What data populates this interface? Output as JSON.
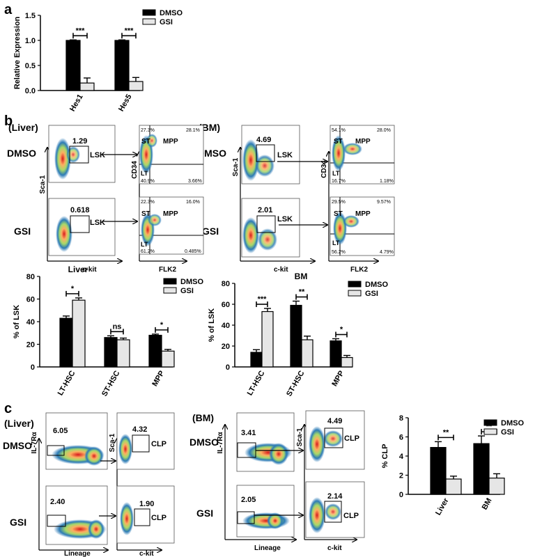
{
  "panel_letters": {
    "a": "a",
    "b": "b",
    "c": "c"
  },
  "legend": {
    "dmso": "DMSO",
    "gsi": "GSI"
  },
  "colors": {
    "dmso": "#000000",
    "gsi": "#e6e6e6"
  },
  "flow_b": {
    "tissue_liver": "(Liver)",
    "tissue_bm": "(BM)",
    "row_dmso": "DMSO",
    "row_gsi": "GSI",
    "y1": "Sca-1",
    "x1": "c-kit",
    "y2": "CD34",
    "x2": "FLK2",
    "gate": "LSK",
    "st": "ST",
    "mpp": "MPP",
    "lt": "LT",
    "liver_dmso": {
      "lsk": "1.29",
      "ul": "27.3%",
      "ur": "28.1%",
      "ll": "40.9%",
      "lr": "3.66%"
    },
    "liver_gsi": {
      "lsk": "0.618",
      "ul": "22.3%",
      "ur": "16.0%",
      "ll": "61.2%",
      "lr": "0.485%"
    },
    "bm_dmso": {
      "lsk": "4.69",
      "ul": "54.1%",
      "ur": "28.0%",
      "ll": "16.7%",
      "lr": "1.18%"
    },
    "bm_gsi": {
      "lsk": "2.01",
      "ul": "29.5%",
      "ur": "9.57%",
      "ll": "56.2%",
      "lr": "4.79%"
    }
  },
  "flow_c": {
    "tissue_liver": "(Liver)",
    "tissue_bm": "(BM)",
    "row_dmso": "DMSO",
    "row_gsi": "GSI",
    "y1": "IL-7Rα",
    "x1": "Lineage",
    "y2": "Sca-1",
    "x2": "c-kit",
    "gate": "CLP",
    "liver_dmso": {
      "g1": "6.05",
      "g2": "4.32"
    },
    "liver_gsi": {
      "g1": "2.40",
      "g2": "1.90"
    },
    "bm_dmso": {
      "g1": "3.41",
      "g2": "4.49"
    },
    "bm_gsi": {
      "g1": "2.05",
      "g2": "2.14"
    }
  },
  "chart_data": [
    {
      "type": "bar",
      "title": "",
      "categories": [
        "Hes1",
        "Hes5"
      ],
      "series": [
        {
          "name": "DMSO",
          "values": [
            1.0,
            1.0
          ]
        },
        {
          "name": "GSI",
          "values": [
            0.15,
            0.18
          ]
        }
      ],
      "errors": [
        [
          0.01,
          0.01
        ],
        [
          0.1,
          0.08
        ]
      ],
      "significance": [
        "***",
        "***"
      ],
      "xlabel": "",
      "ylabel": "Relative Expression",
      "ylim": [
        0,
        1.5
      ],
      "yticks": [
        "0.0",
        "0.5",
        "1.0",
        "1.5"
      ],
      "legend": "top-right"
    },
    {
      "type": "bar",
      "title": "Liver",
      "categories": [
        "LT-HSC",
        "ST-HSC",
        "MPP"
      ],
      "series": [
        {
          "name": "DMSO",
          "values": [
            43,
            26,
            28
          ]
        },
        {
          "name": "GSI",
          "values": [
            59,
            24,
            14
          ]
        }
      ],
      "errors": [
        [
          2,
          1.5,
          1
        ],
        [
          2,
          1.5,
          1.5
        ]
      ],
      "significance": [
        "*",
        "ns",
        "*"
      ],
      "xlabel": "",
      "ylabel": "% of LSK",
      "ylim": [
        0,
        80
      ],
      "yticks": [
        "0",
        "20",
        "40",
        "60",
        "80"
      ],
      "legend": "top-right"
    },
    {
      "type": "bar",
      "title": "BM",
      "categories": [
        "LT-HSC",
        "ST-HSC",
        "MPP"
      ],
      "series": [
        {
          "name": "DMSO",
          "values": [
            14,
            59,
            25
          ]
        },
        {
          "name": "GSI",
          "values": [
            53,
            26,
            9
          ]
        }
      ],
      "errors": [
        [
          2.5,
          4,
          2
        ],
        [
          3,
          3.5,
          2
        ]
      ],
      "significance": [
        "***",
        "**",
        "*"
      ],
      "xlabel": "",
      "ylabel": "% of LSK",
      "ylim": [
        0,
        80
      ],
      "yticks": [
        "0",
        "20",
        "40",
        "60",
        "80"
      ],
      "legend": "top-right"
    },
    {
      "type": "bar",
      "title": "",
      "categories": [
        "Liver",
        "BM"
      ],
      "series": [
        {
          "name": "DMSO",
          "values": [
            4.9,
            5.3
          ]
        },
        {
          "name": "GSI",
          "values": [
            1.6,
            1.7
          ]
        }
      ],
      "errors": [
        [
          0.6,
          0.8
        ],
        [
          0.3,
          0.45
        ]
      ],
      "significance": [
        "**",
        "**"
      ],
      "xlabel": "",
      "ylabel": "% CLP",
      "ylim": [
        0,
        8
      ],
      "yticks": [
        "0",
        "2",
        "4",
        "6",
        "8"
      ],
      "legend": "top-right"
    }
  ]
}
